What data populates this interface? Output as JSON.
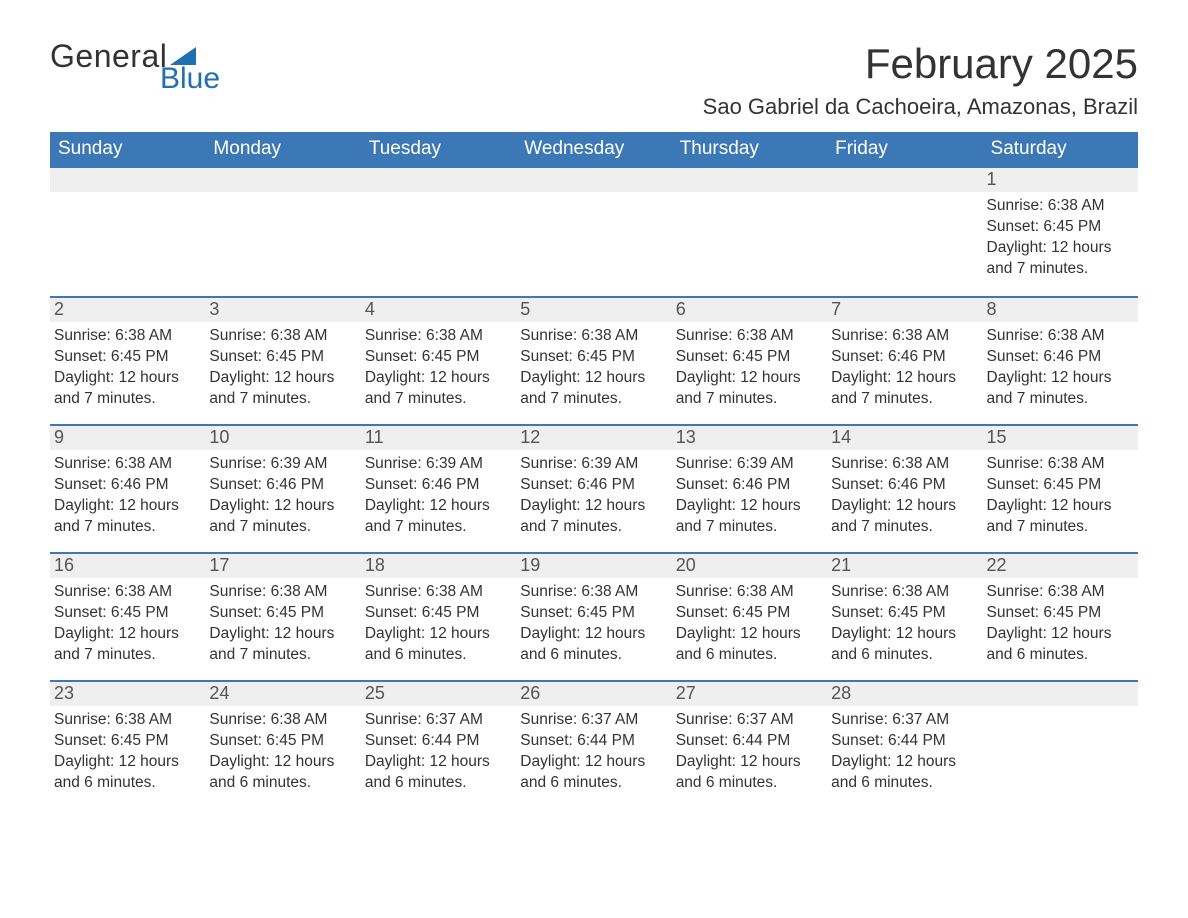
{
  "logo": {
    "text1": "General",
    "text2": "Blue"
  },
  "title": "February 2025",
  "location": "Sao Gabriel da Cachoeira, Amazonas, Brazil",
  "colors": {
    "header_bg": "#3b78b5",
    "header_text": "#ffffff",
    "daynum_bg": "#efefef",
    "border": "#3b78b5",
    "logo_blue": "#1f6fb2",
    "text": "#333333"
  },
  "day_names": [
    "Sunday",
    "Monday",
    "Tuesday",
    "Wednesday",
    "Thursday",
    "Friday",
    "Saturday"
  ],
  "labels": {
    "sunrise": "Sunrise:",
    "sunset": "Sunset:",
    "daylight": "Daylight:"
  },
  "weeks": [
    [
      null,
      null,
      null,
      null,
      null,
      null,
      {
        "n": "1",
        "sunrise": "6:38 AM",
        "sunset": "6:45 PM",
        "daylight1": "12 hours",
        "daylight2": "and 7 minutes."
      }
    ],
    [
      {
        "n": "2",
        "sunrise": "6:38 AM",
        "sunset": "6:45 PM",
        "daylight1": "12 hours",
        "daylight2": "and 7 minutes."
      },
      {
        "n": "3",
        "sunrise": "6:38 AM",
        "sunset": "6:45 PM",
        "daylight1": "12 hours",
        "daylight2": "and 7 minutes."
      },
      {
        "n": "4",
        "sunrise": "6:38 AM",
        "sunset": "6:45 PM",
        "daylight1": "12 hours",
        "daylight2": "and 7 minutes."
      },
      {
        "n": "5",
        "sunrise": "6:38 AM",
        "sunset": "6:45 PM",
        "daylight1": "12 hours",
        "daylight2": "and 7 minutes."
      },
      {
        "n": "6",
        "sunrise": "6:38 AM",
        "sunset": "6:45 PM",
        "daylight1": "12 hours",
        "daylight2": "and 7 minutes."
      },
      {
        "n": "7",
        "sunrise": "6:38 AM",
        "sunset": "6:46 PM",
        "daylight1": "12 hours",
        "daylight2": "and 7 minutes."
      },
      {
        "n": "8",
        "sunrise": "6:38 AM",
        "sunset": "6:46 PM",
        "daylight1": "12 hours",
        "daylight2": "and 7 minutes."
      }
    ],
    [
      {
        "n": "9",
        "sunrise": "6:38 AM",
        "sunset": "6:46 PM",
        "daylight1": "12 hours",
        "daylight2": "and 7 minutes."
      },
      {
        "n": "10",
        "sunrise": "6:39 AM",
        "sunset": "6:46 PM",
        "daylight1": "12 hours",
        "daylight2": "and 7 minutes."
      },
      {
        "n": "11",
        "sunrise": "6:39 AM",
        "sunset": "6:46 PM",
        "daylight1": "12 hours",
        "daylight2": "and 7 minutes."
      },
      {
        "n": "12",
        "sunrise": "6:39 AM",
        "sunset": "6:46 PM",
        "daylight1": "12 hours",
        "daylight2": "and 7 minutes."
      },
      {
        "n": "13",
        "sunrise": "6:39 AM",
        "sunset": "6:46 PM",
        "daylight1": "12 hours",
        "daylight2": "and 7 minutes."
      },
      {
        "n": "14",
        "sunrise": "6:38 AM",
        "sunset": "6:46 PM",
        "daylight1": "12 hours",
        "daylight2": "and 7 minutes."
      },
      {
        "n": "15",
        "sunrise": "6:38 AM",
        "sunset": "6:45 PM",
        "daylight1": "12 hours",
        "daylight2": "and 7 minutes."
      }
    ],
    [
      {
        "n": "16",
        "sunrise": "6:38 AM",
        "sunset": "6:45 PM",
        "daylight1": "12 hours",
        "daylight2": "and 7 minutes."
      },
      {
        "n": "17",
        "sunrise": "6:38 AM",
        "sunset": "6:45 PM",
        "daylight1": "12 hours",
        "daylight2": "and 7 minutes."
      },
      {
        "n": "18",
        "sunrise": "6:38 AM",
        "sunset": "6:45 PM",
        "daylight1": "12 hours",
        "daylight2": "and 6 minutes."
      },
      {
        "n": "19",
        "sunrise": "6:38 AM",
        "sunset": "6:45 PM",
        "daylight1": "12 hours",
        "daylight2": "and 6 minutes."
      },
      {
        "n": "20",
        "sunrise": "6:38 AM",
        "sunset": "6:45 PM",
        "daylight1": "12 hours",
        "daylight2": "and 6 minutes."
      },
      {
        "n": "21",
        "sunrise": "6:38 AM",
        "sunset": "6:45 PM",
        "daylight1": "12 hours",
        "daylight2": "and 6 minutes."
      },
      {
        "n": "22",
        "sunrise": "6:38 AM",
        "sunset": "6:45 PM",
        "daylight1": "12 hours",
        "daylight2": "and 6 minutes."
      }
    ],
    [
      {
        "n": "23",
        "sunrise": "6:38 AM",
        "sunset": "6:45 PM",
        "daylight1": "12 hours",
        "daylight2": "and 6 minutes."
      },
      {
        "n": "24",
        "sunrise": "6:38 AM",
        "sunset": "6:45 PM",
        "daylight1": "12 hours",
        "daylight2": "and 6 minutes."
      },
      {
        "n": "25",
        "sunrise": "6:37 AM",
        "sunset": "6:44 PM",
        "daylight1": "12 hours",
        "daylight2": "and 6 minutes."
      },
      {
        "n": "26",
        "sunrise": "6:37 AM",
        "sunset": "6:44 PM",
        "daylight1": "12 hours",
        "daylight2": "and 6 minutes."
      },
      {
        "n": "27",
        "sunrise": "6:37 AM",
        "sunset": "6:44 PM",
        "daylight1": "12 hours",
        "daylight2": "and 6 minutes."
      },
      {
        "n": "28",
        "sunrise": "6:37 AM",
        "sunset": "6:44 PM",
        "daylight1": "12 hours",
        "daylight2": "and 6 minutes."
      },
      null
    ]
  ]
}
